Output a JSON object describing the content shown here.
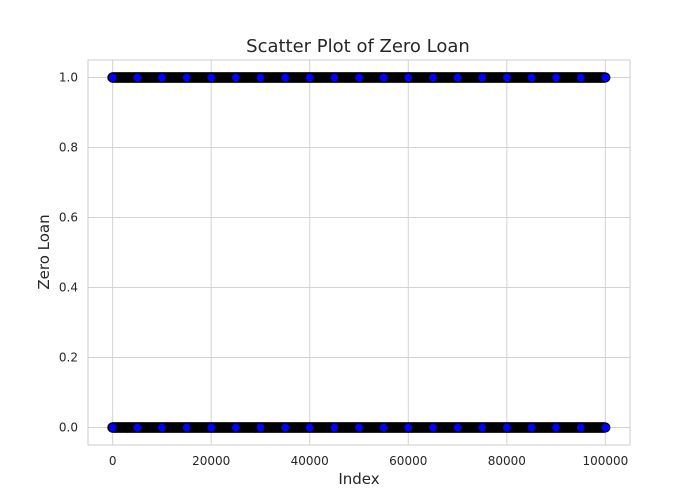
{
  "chart_data": {
    "type": "scatter",
    "title": "Scatter Plot of Zero Loan",
    "xlabel": "Index",
    "ylabel": "Zero Loan",
    "xlim": [
      -5000,
      105000
    ],
    "ylim": [
      -0.05,
      1.05
    ],
    "x_ticks": [
      0,
      20000,
      40000,
      60000,
      80000,
      100000
    ],
    "x_tick_labels": [
      "0",
      "20000",
      "40000",
      "60000",
      "80000",
      "100000"
    ],
    "y_ticks": [
      0.0,
      0.2,
      0.4,
      0.6,
      0.8,
      1.0
    ],
    "y_tick_labels": [
      "0.0",
      "0.2",
      "0.4",
      "0.6",
      "0.8",
      "1.0"
    ],
    "grid": true,
    "marker_fill": "#0000ff",
    "marker_edge": "#000000",
    "series": [
      {
        "x_range": [
          0,
          99999
        ],
        "y_values": [
          0,
          1
        ],
        "points": [
          {
            "x": 0,
            "y": 0
          },
          {
            "x": 5000,
            "y": 0
          },
          {
            "x": 10000,
            "y": 0
          },
          {
            "x": 15000,
            "y": 0
          },
          {
            "x": 20000,
            "y": 0
          },
          {
            "x": 25000,
            "y": 0
          },
          {
            "x": 30000,
            "y": 0
          },
          {
            "x": 35000,
            "y": 0
          },
          {
            "x": 40000,
            "y": 0
          },
          {
            "x": 45000,
            "y": 0
          },
          {
            "x": 50000,
            "y": 0
          },
          {
            "x": 55000,
            "y": 0
          },
          {
            "x": 60000,
            "y": 0
          },
          {
            "x": 65000,
            "y": 0
          },
          {
            "x": 70000,
            "y": 0
          },
          {
            "x": 75000,
            "y": 0
          },
          {
            "x": 80000,
            "y": 0
          },
          {
            "x": 85000,
            "y": 0
          },
          {
            "x": 90000,
            "y": 0
          },
          {
            "x": 95000,
            "y": 0
          },
          {
            "x": 99999,
            "y": 0
          },
          {
            "x": 0,
            "y": 1
          },
          {
            "x": 5000,
            "y": 1
          },
          {
            "x": 10000,
            "y": 1
          },
          {
            "x": 15000,
            "y": 1
          },
          {
            "x": 20000,
            "y": 1
          },
          {
            "x": 25000,
            "y": 1
          },
          {
            "x": 30000,
            "y": 1
          },
          {
            "x": 35000,
            "y": 1
          },
          {
            "x": 40000,
            "y": 1
          },
          {
            "x": 45000,
            "y": 1
          },
          {
            "x": 50000,
            "y": 1
          },
          {
            "x": 55000,
            "y": 1
          },
          {
            "x": 60000,
            "y": 1
          },
          {
            "x": 65000,
            "y": 1
          },
          {
            "x": 70000,
            "y": 1
          },
          {
            "x": 75000,
            "y": 1
          },
          {
            "x": 80000,
            "y": 1
          },
          {
            "x": 85000,
            "y": 1
          },
          {
            "x": 90000,
            "y": 1
          },
          {
            "x": 95000,
            "y": 1
          },
          {
            "x": 99999,
            "y": 1
          }
        ]
      }
    ]
  }
}
